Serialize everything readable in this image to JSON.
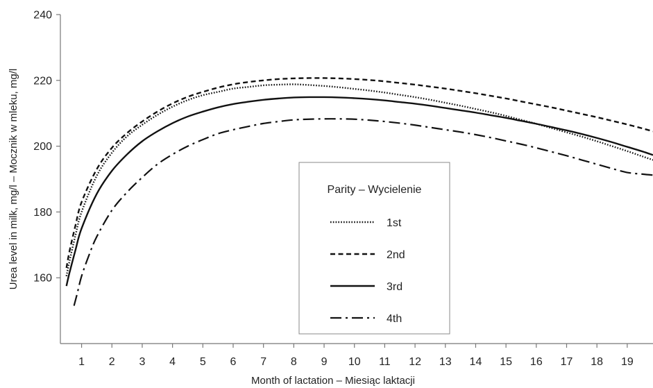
{
  "chart_data": {
    "type": "line",
    "xlabel": "Month of lactation – Miesiąc laktacji",
    "ylabel": "Urea level in milk, mg/l – Mocznik w mleku, mg/l",
    "xlim": [
      0.3,
      19.85
    ],
    "ylim": [
      140,
      240
    ],
    "x_ticks": [
      "1",
      "2",
      "3",
      "4",
      "5",
      "6",
      "7",
      "8",
      "9",
      "10",
      "11",
      "12",
      "13",
      "14",
      "15",
      "16",
      "17",
      "18",
      "19"
    ],
    "y_ticks": [
      "160",
      "180",
      "200",
      "220",
      "240"
    ],
    "grid": false,
    "legend": {
      "title": "Parity – Wycielenie",
      "placement": "center-right"
    },
    "series": [
      {
        "name": "1st",
        "dash": "dotted",
        "x": [
          0.5,
          0.6,
          0.8,
          1,
          1.5,
          2,
          2.5,
          3,
          3.5,
          4,
          4.5,
          5,
          5.5,
          6,
          6.5,
          7,
          7.5,
          8,
          8.5,
          9,
          9.5,
          10,
          10.5,
          11,
          11.5,
          12,
          12.5,
          13,
          13.5,
          14,
          14.5,
          15,
          15.5,
          16,
          16.5,
          17,
          17.5,
          18,
          18.5,
          19,
          19.5,
          19.85
        ],
        "y": [
          160.5,
          165,
          173,
          180,
          191,
          198,
          203,
          206.5,
          209.5,
          212,
          214,
          215.5,
          216.5,
          217.5,
          218,
          218.5,
          218.7,
          218.8,
          218.6,
          218.3,
          217.9,
          217.4,
          216.9,
          216.3,
          215.6,
          214.9,
          214.1,
          213.2,
          212.3,
          211.3,
          210.3,
          209.2,
          208,
          206.8,
          205.5,
          204.2,
          202.9,
          201.5,
          200,
          198.5,
          196.9,
          195.8
        ]
      },
      {
        "name": "2nd",
        "dash": "dashed",
        "x": [
          0.5,
          0.6,
          0.8,
          1,
          1.5,
          2,
          2.5,
          3,
          3.5,
          4,
          4.5,
          5,
          5.5,
          6,
          6.5,
          7,
          7.5,
          8,
          8.5,
          9,
          9.5,
          10,
          10.5,
          11,
          11.5,
          12,
          12.5,
          13,
          13.5,
          14,
          14.5,
          15,
          15.5,
          16,
          16.5,
          17,
          17.5,
          18,
          18.5,
          19,
          19.5,
          19.85
        ],
        "y": [
          163,
          168,
          176,
          183,
          193,
          199.5,
          204,
          207.5,
          210.5,
          213,
          215,
          216.5,
          217.8,
          218.8,
          219.5,
          220,
          220.4,
          220.6,
          220.7,
          220.7,
          220.6,
          220.4,
          220.1,
          219.7,
          219.2,
          218.7,
          218.1,
          217.5,
          216.8,
          216.1,
          215.3,
          214.5,
          213.6,
          212.7,
          211.8,
          210.8,
          209.8,
          208.8,
          207.7,
          206.6,
          205.4,
          204.5
        ]
      },
      {
        "name": "3rd",
        "dash": "solid",
        "x": [
          0.5,
          0.6,
          0.8,
          1,
          1.5,
          2,
          2.5,
          3,
          3.5,
          4,
          4.5,
          5,
          5.5,
          6,
          6.5,
          7,
          7.5,
          8,
          8.5,
          9,
          9.5,
          10,
          10.5,
          11,
          11.5,
          12,
          12.5,
          13,
          13.5,
          14,
          14.5,
          15,
          15.5,
          16,
          16.5,
          17,
          17.5,
          18,
          18.5,
          19,
          19.5,
          19.85
        ],
        "y": [
          157.5,
          161.5,
          168.5,
          175,
          185.5,
          192.5,
          197.5,
          201.5,
          204.5,
          207,
          209,
          210.5,
          211.8,
          212.8,
          213.5,
          214.1,
          214.5,
          214.8,
          214.9,
          214.9,
          214.8,
          214.6,
          214.3,
          213.9,
          213.4,
          212.9,
          212.3,
          211.6,
          210.9,
          210.2,
          209.4,
          208.6,
          207.7,
          206.8,
          205.8,
          204.8,
          203.7,
          202.5,
          201.2,
          199.8,
          198.4,
          197.3
        ]
      },
      {
        "name": "4th",
        "dash": "dash-dot",
        "x": [
          0.75,
          0.85,
          1,
          1.25,
          1.5,
          2,
          2.5,
          3,
          3.5,
          4,
          4.5,
          5,
          5.5,
          6,
          6.5,
          7,
          7.5,
          8,
          8.5,
          9,
          9.5,
          10,
          10.5,
          11,
          11.5,
          12,
          12.5,
          13,
          13.5,
          14,
          14.5,
          15,
          15.5,
          16,
          16.5,
          17,
          17.5,
          18,
          18.5,
          19,
          19.5,
          19.85
        ],
        "y": [
          151.5,
          155,
          160.5,
          167,
          172.5,
          180.5,
          186,
          190.5,
          194.5,
          197.5,
          200,
          202,
          203.8,
          205,
          206,
          206.9,
          207.5,
          208,
          208.2,
          208.3,
          208.3,
          208.2,
          207.9,
          207.5,
          207,
          206.4,
          205.7,
          205,
          204.3,
          203.5,
          202.6,
          201.6,
          200.6,
          199.5,
          198.3,
          197.1,
          195.8,
          194.5,
          193.2,
          192,
          191.5,
          191.2
        ]
      }
    ]
  }
}
